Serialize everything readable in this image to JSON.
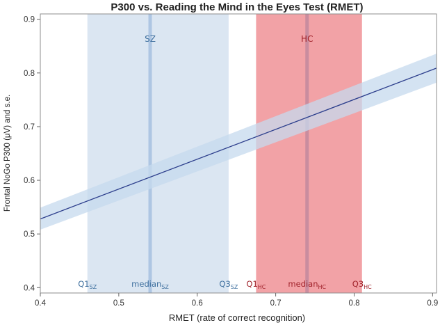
{
  "chart_data": {
    "type": "line",
    "title": "P300 vs. Reading the Mind in the Eyes Test (RMET)",
    "xlabel": "RMET (rate of correct recognition)",
    "ylabel": "Frontal NoGo P300 (μV) and s.e.",
    "xlim": [
      0.4,
      0.905
    ],
    "ylim": [
      0.39,
      0.91
    ],
    "x_ticks": [
      0.4,
      0.5,
      0.6,
      0.7,
      0.8,
      0.9
    ],
    "y_ticks": [
      0.4,
      0.5,
      0.6,
      0.7,
      0.8,
      0.9
    ],
    "grid": false,
    "series": [
      {
        "x": [
          0.4,
          0.905
        ],
        "y": [
          0.528,
          0.809
        ],
        "ci_lower": [
          0.508,
          0.782
        ],
        "ci_upper": [
          0.549,
          0.836
        ]
      }
    ],
    "bands": [
      {
        "label": "SZ",
        "color": "#dbe6f2",
        "median_color": "#aec6e3",
        "text_color": "#3e6f9e",
        "q1": 0.46,
        "median": 0.54,
        "q3": 0.64,
        "q1_label": "Q1",
        "median_label": "median",
        "q3_label": "Q3",
        "subscript": "SZ"
      },
      {
        "label": "HC",
        "color": "#f2a2a6",
        "median_color": "#c98d9f",
        "text_color": "#a0222a",
        "q1": 0.675,
        "median": 0.74,
        "q3": 0.81,
        "q1_label": "Q1",
        "median_label": "median",
        "q3_label": "Q3",
        "subscript": "HC"
      }
    ],
    "colors": {
      "line": "#2c3e8c",
      "ci_band": "#c5d9ee"
    }
  }
}
